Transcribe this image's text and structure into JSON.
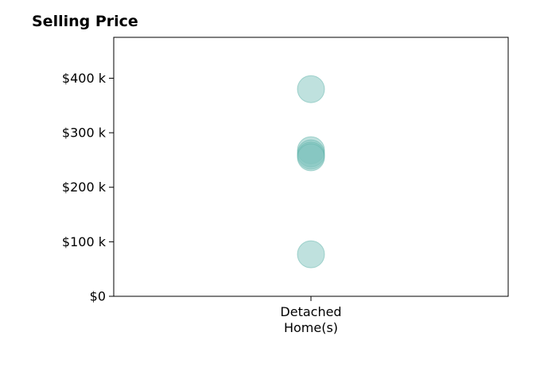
{
  "chart_data": {
    "type": "scatter",
    "title": "Selling Price",
    "xlabel": "",
    "ylabel": "",
    "categories": [
      "Detached\nHome(s)"
    ],
    "yticks": [
      0,
      100000,
      200000,
      300000,
      400000
    ],
    "ytick_labels": [
      "$0",
      "$100 k",
      "$200 k",
      "$300 k",
      "$400 k"
    ],
    "ylim": [
      0,
      475000
    ],
    "grid": false,
    "points": [
      {
        "category": "Detached\nHome(s)",
        "y": 380000
      },
      {
        "category": "Detached\nHome(s)",
        "y": 268000
      },
      {
        "category": "Detached\nHome(s)",
        "y": 262000
      },
      {
        "category": "Detached\nHome(s)",
        "y": 258000
      },
      {
        "category": "Detached\nHome(s)",
        "y": 255000
      },
      {
        "category": "Detached\nHome(s)",
        "y": 77000
      }
    ],
    "colors": {
      "point_fill": "#7fc4bd",
      "point_stroke": "#5fb3aa"
    }
  }
}
